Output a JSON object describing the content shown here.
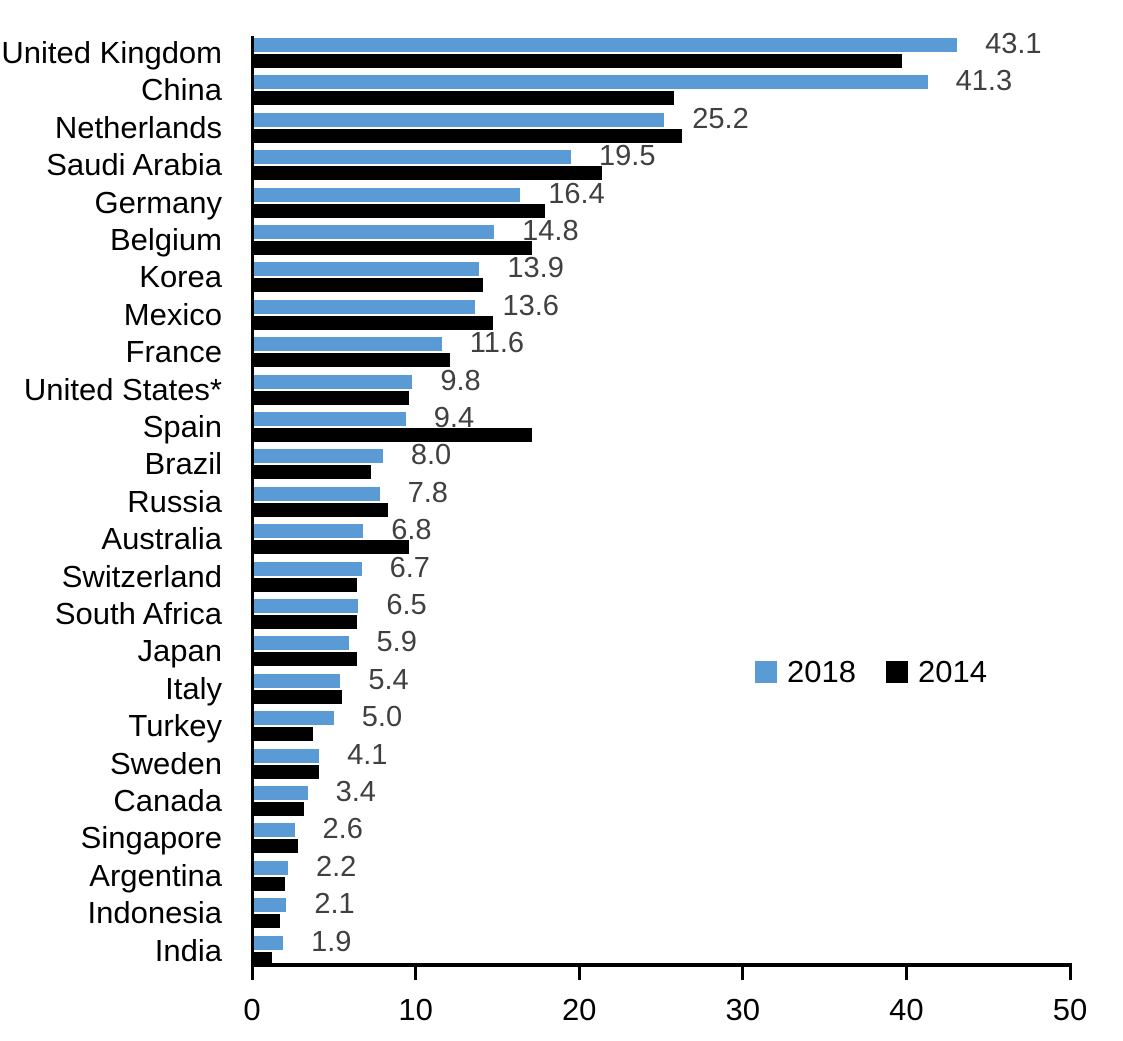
{
  "chart_data": {
    "type": "bar",
    "orientation": "horizontal",
    "title": "",
    "xlabel": "",
    "ylabel": "",
    "categories": [
      "United Kingdom",
      "China",
      "Netherlands",
      "Saudi Arabia",
      "Germany",
      "Belgium",
      "Korea",
      "Mexico",
      "France",
      "United States*",
      "Spain",
      "Brazil",
      "Russia",
      "Australia",
      "Switzerland",
      "South Africa",
      "Japan",
      "Italy",
      "Turkey",
      "Sweden",
      "Canada",
      "Singapore",
      "Argentina",
      "Indonesia",
      "India"
    ],
    "series": [
      {
        "name": "2018",
        "color": "#5B9BD5",
        "values": [
          43.1,
          41.3,
          25.2,
          19.5,
          16.4,
          14.8,
          13.9,
          13.6,
          11.6,
          9.8,
          9.4,
          8.0,
          7.8,
          6.8,
          6.7,
          6.5,
          5.9,
          5.4,
          5.0,
          4.1,
          3.4,
          2.6,
          2.2,
          2.1,
          1.9
        ],
        "data_labels": [
          "43.1",
          "41.3",
          "25.2",
          "19.5",
          "16.4",
          "14.8",
          "13.9",
          "13.6",
          "11.6",
          "9.8",
          "9.4",
          "8.0",
          "7.8",
          "6.8",
          "6.7",
          "6.5",
          "5.9",
          "5.4",
          "5.0",
          "4.1",
          "3.4",
          "2.6",
          "2.2",
          "2.1",
          "1.9"
        ]
      },
      {
        "name": "2014",
        "color": "#000000",
        "values": [
          39.7,
          25.8,
          26.3,
          21.4,
          17.9,
          17.1,
          14.1,
          14.7,
          12.1,
          9.6,
          17.1,
          7.3,
          8.3,
          9.6,
          6.4,
          6.4,
          6.4,
          5.5,
          3.7,
          4.1,
          3.2,
          2.8,
          2.0,
          1.7,
          1.2
        ]
      }
    ],
    "xlim": [
      0,
      50
    ],
    "x_ticks": [
      "0",
      "10",
      "20",
      "30",
      "40",
      "50"
    ],
    "grid": false,
    "legend": {
      "position": "middle-right",
      "entries": [
        {
          "label": "2018",
          "color": "#5B9BD5"
        },
        {
          "label": "2014",
          "color": "#000000"
        }
      ]
    },
    "value_label_color": "#404040",
    "axis_color": "#000000"
  }
}
